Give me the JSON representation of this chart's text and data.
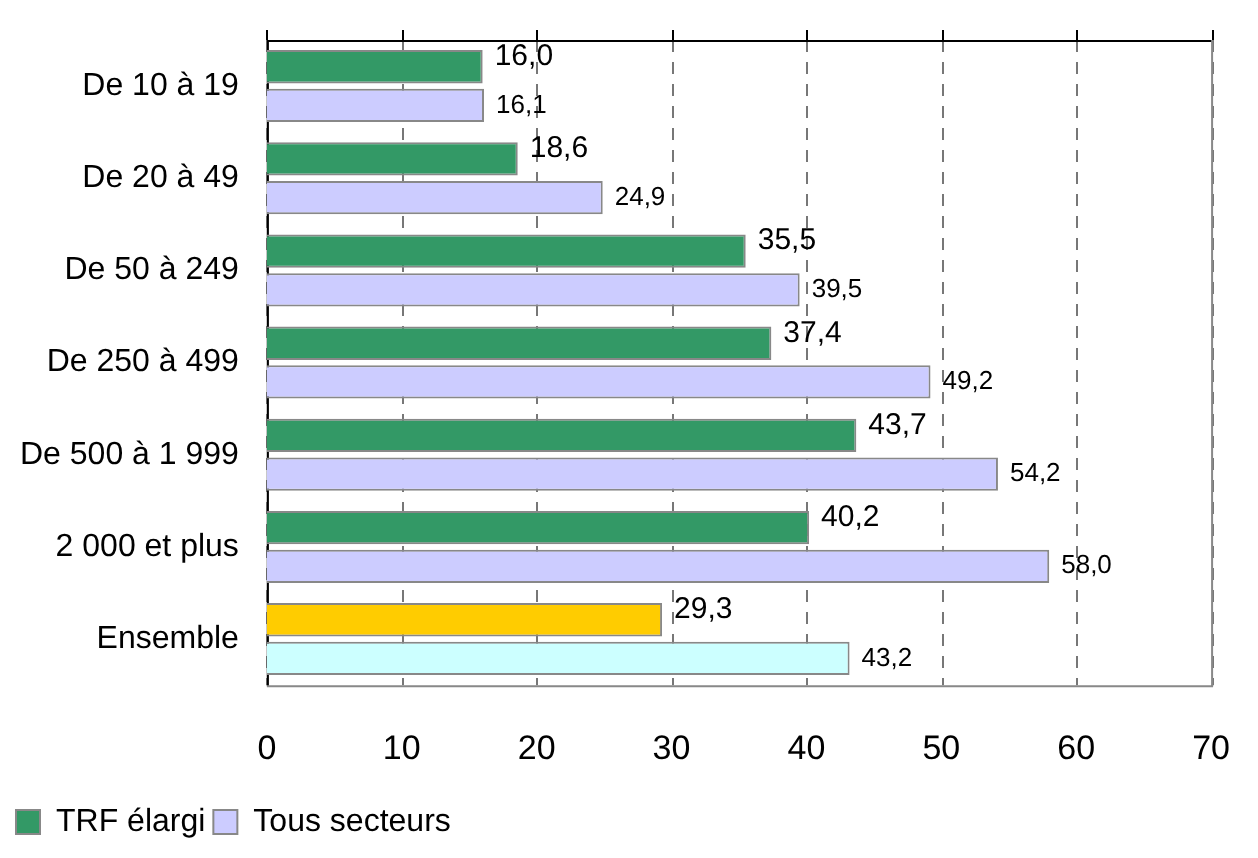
{
  "chart_data": {
    "type": "bar",
    "orientation": "horizontal",
    "categories": [
      "De 10 à 19",
      "De 20 à 49",
      "De 50 à 249",
      "De 250 à 499",
      "De 500 à 1 999",
      "2 000 et plus",
      "Ensemble"
    ],
    "series": [
      {
        "name": "TRF élargi",
        "color": "#339966",
        "colors": [
          "#339966",
          "#339966",
          "#339966",
          "#339966",
          "#339966",
          "#339966",
          "#ffcc00"
        ],
        "values": [
          16.0,
          18.6,
          35.5,
          37.4,
          43.7,
          40.2,
          29.3
        ],
        "value_labels": [
          "16,0",
          "18,6",
          "35,5",
          "37,4",
          "43,7",
          "40,2",
          "29,3"
        ]
      },
      {
        "name": "Tous secteurs",
        "color": "#ccccff",
        "colors": [
          "#ccccff",
          "#ccccff",
          "#ccccff",
          "#ccccff",
          "#ccccff",
          "#ccccff",
          "#ccffff"
        ],
        "values": [
          16.1,
          24.9,
          39.5,
          49.2,
          54.2,
          58.0,
          43.2
        ],
        "value_labels": [
          "16,1",
          "24,9",
          "39,5",
          "49,2",
          "54,2",
          "58,0",
          "43,2"
        ]
      }
    ],
    "xlim": [
      0,
      70
    ],
    "xticks": [
      0,
      10,
      20,
      30,
      40,
      50,
      60,
      70
    ],
    "grid": "x",
    "legend": "bottom left"
  }
}
